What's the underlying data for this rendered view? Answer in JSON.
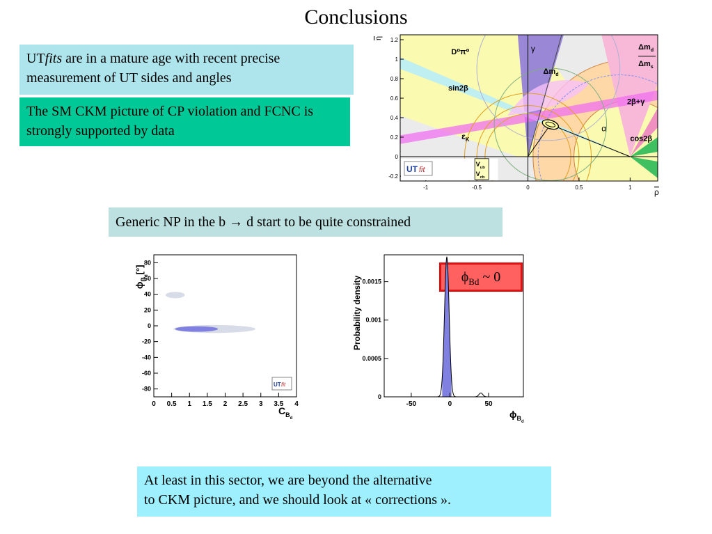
{
  "title": "Conclusions",
  "box1": {
    "part1": "UT",
    "part2": "fits",
    "part3": " are in a mature age with recent precise measurement of UT sides and angles"
  },
  "box2": {
    "text": "The SM CKM picture of CP violation and FCNC is strongly supported by data"
  },
  "box3": {
    "part1": "Generic NP in the b ",
    "arrow": "→",
    "part2": " d start to be quite constrained"
  },
  "box4": {
    "line1": "At least in this sector, we are beyond the alternative",
    "line2": "to CKM picture, and we should look at « corrections »."
  },
  "phi_box": {
    "phi": "ϕ",
    "sub": "Bd",
    "rest": " ~ 0"
  },
  "colors": {
    "box1": "#aee4ec",
    "box2": "#00c896",
    "box3": "#bde0e0",
    "box4": "#9ef0ff",
    "phi_fill": "#ff6161",
    "phi_border": "#e01010",
    "ellipse_fill": "#8080e0",
    "ellipse_outer": "#d8dce8"
  },
  "chart_data": [
    {
      "type": "other",
      "name": "ut-plane",
      "xlabel": "ρ",
      "ylabel": "η",
      "x_ticks": [
        "-1",
        "-0.5",
        "0",
        "0.5",
        "1"
      ],
      "y_ticks": [
        "1.2",
        "1",
        "0.8",
        "0.6",
        "0.4",
        "0.2",
        "0",
        "-0.2"
      ],
      "xlim": [
        -1.25,
        1.27
      ],
      "ylim": [
        -0.25,
        1.25
      ],
      "labels": {
        "d0pi0": "D⁰π⁰",
        "gamma": "γ",
        "dmd": "Δm",
        "dmd_sub": "d",
        "dmratio_num": "Δm",
        "dmratio_num_sub": "d",
        "dmratio_den": "Δm",
        "dmratio_den_sub": "s",
        "sin2b": "sin2β",
        "twobg": "2β+γ",
        "alpha": "α",
        "epsk": "ε",
        "epsk_sub": "K",
        "cos2b": "cos2β",
        "vub": "V",
        "vub_sub": "ub",
        "vcb": "V",
        "vcb_sub": "cb",
        "logo_ut": "UT",
        "logo_fit": "fit"
      },
      "apex": {
        "rho": 0.22,
        "eta": 0.33
      }
    },
    {
      "type": "contour",
      "name": "phi-vs-c",
      "xlabel": "C",
      "xlabel_sub": "B",
      "xlabel_subsub": "d",
      "ylabel": "ϕ",
      "ylabel_sub": "B",
      "ylabel_subsub": "d",
      "ylabel_unit": "[°]",
      "x_ticks": [
        "0",
        "0.5",
        "1",
        "1.5",
        "2",
        "2.5",
        "3",
        "3.5",
        "4"
      ],
      "y_ticks": [
        "80",
        "60",
        "40",
        "20",
        "0",
        "-20",
        "-40",
        "-60",
        "-80"
      ],
      "xlim": [
        0,
        4
      ],
      "ylim": [
        -90,
        90
      ],
      "regions": [
        {
          "level": "outer",
          "cx": 1.7,
          "cy": -4,
          "rx": 1.15,
          "ry": 5
        },
        {
          "level": "outer",
          "cx": 0.6,
          "cy": 39,
          "rx": 0.27,
          "ry": 4
        },
        {
          "level": "inner",
          "cx": 1.2,
          "cy": -4,
          "rx": 0.6,
          "ry": 3.5
        }
      ],
      "logo_ut": "UT",
      "logo_fit": "fit"
    },
    {
      "type": "line",
      "name": "phi-pdf",
      "xlabel": "ϕ",
      "xlabel_sub": "B",
      "xlabel_subsub": "d",
      "ylabel": "Probability density",
      "x_ticks": [
        "-50",
        "0",
        "50"
      ],
      "y_ticks": [
        "0.0015",
        "0.001",
        "0.0005",
        "0"
      ],
      "xlim": [
        -85,
        95
      ],
      "ylim": [
        0,
        0.00185
      ],
      "peaks": [
        {
          "mean": -4,
          "sigma": 3,
          "height": 0.00182,
          "shaded": true
        },
        {
          "mean": 40,
          "sigma": 2.5,
          "height": 5e-05,
          "shaded": false
        }
      ]
    }
  ]
}
